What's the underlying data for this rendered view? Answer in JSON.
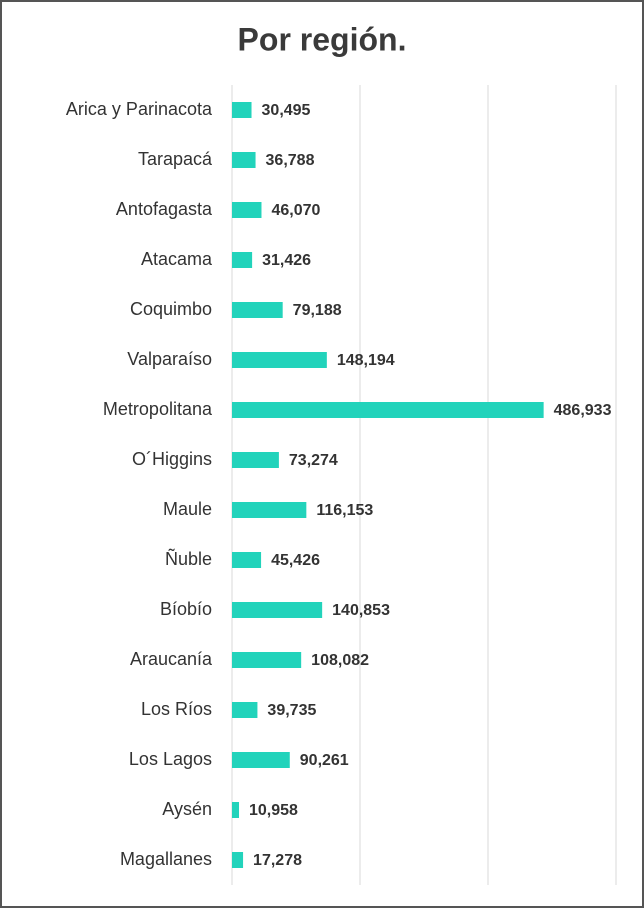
{
  "chart_data": {
    "type": "barh",
    "title": "Por región.",
    "categories": [
      "Arica y Parinacota",
      "Tarapacá",
      "Antofagasta",
      "Atacama",
      "Coquimbo",
      "Valparaíso",
      "Metropolitana",
      "O´Higgins",
      "Maule",
      "Ñuble",
      "Bíobío",
      "Araucanía",
      "Los Ríos",
      "Los Lagos",
      "Aysén",
      "Magallanes"
    ],
    "values": [
      30495,
      36788,
      46070,
      31426,
      79188,
      148194,
      486933,
      73274,
      116153,
      45426,
      140853,
      108082,
      39735,
      90261,
      10958,
      17278
    ],
    "value_labels": [
      "30,495",
      "36,788",
      "46,070",
      "31,426",
      "79,188",
      "148,194",
      "486,933",
      "73,274",
      "116,153",
      "45,426",
      "140,853",
      "108,082",
      "39,735",
      "90,261",
      "10,958",
      "17,278"
    ],
    "color": "#22d3bb",
    "xlim": [
      0,
      600000
    ],
    "xticks": [
      0,
      200000,
      400000,
      600000
    ],
    "grid": true
  }
}
